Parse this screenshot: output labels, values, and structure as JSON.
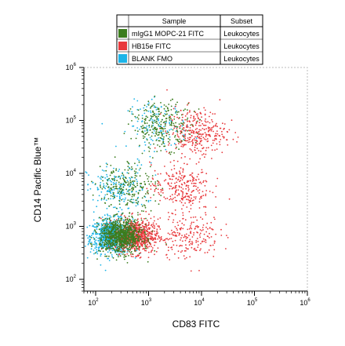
{
  "chart_data": {
    "type": "scatter",
    "title": "",
    "xlabel": "CD83 FITC",
    "ylabel": "CD14 Pacific Blue™",
    "xscale": "log",
    "yscale": "log",
    "xlim": [
      60,
      1000000
    ],
    "ylim": [
      60,
      1000000
    ],
    "xticks": [
      {
        "base": "10",
        "exp": "2",
        "value": 100
      },
      {
        "base": "10",
        "exp": "3",
        "value": 1000
      },
      {
        "base": "10",
        "exp": "4",
        "value": 10000
      },
      {
        "base": "10",
        "exp": "5",
        "value": 100000
      },
      {
        "base": "10",
        "exp": "6",
        "value": 1000000
      }
    ],
    "yticks": [
      {
        "base": "10",
        "exp": "2",
        "value": 100
      },
      {
        "base": "10",
        "exp": "3",
        "value": 1000
      },
      {
        "base": "10",
        "exp": "4",
        "value": 10000
      },
      {
        "base": "10",
        "exp": "5",
        "value": 100000
      },
      {
        "base": "10",
        "exp": "6",
        "value": 1000000
      }
    ],
    "legend": {
      "placement": "top",
      "header_sample": "Sample",
      "header_subset": "Subset"
    },
    "series": [
      {
        "name": "mIgG1 MOPC-21 FITC",
        "subset": "Leukocytes",
        "color": "#3c7d1e",
        "clusters": [
          {
            "x": 300,
            "y": 650,
            "n": 900
          },
          {
            "x": 1800,
            "y": 80000,
            "n": 260
          },
          {
            "x": 400,
            "y": 6000,
            "n": 220
          }
        ]
      },
      {
        "name": "HB15e FITC",
        "subset": "Leukocytes",
        "color": "#e8393c",
        "clusters": [
          {
            "x": 600,
            "y": 650,
            "n": 700
          },
          {
            "x": 8000,
            "y": 60000,
            "n": 320
          },
          {
            "x": 4000,
            "y": 5500,
            "n": 260
          },
          {
            "x": 6000,
            "y": 700,
            "n": 200
          }
        ]
      },
      {
        "name": "BLANK FMO",
        "subset": "Leukocytes",
        "color": "#1cb4e8",
        "clusters": [
          {
            "x": 200,
            "y": 650,
            "n": 800
          },
          {
            "x": 250,
            "y": 5000,
            "n": 200
          },
          {
            "x": 1500,
            "y": 80000,
            "n": 140
          }
        ]
      }
    ]
  }
}
